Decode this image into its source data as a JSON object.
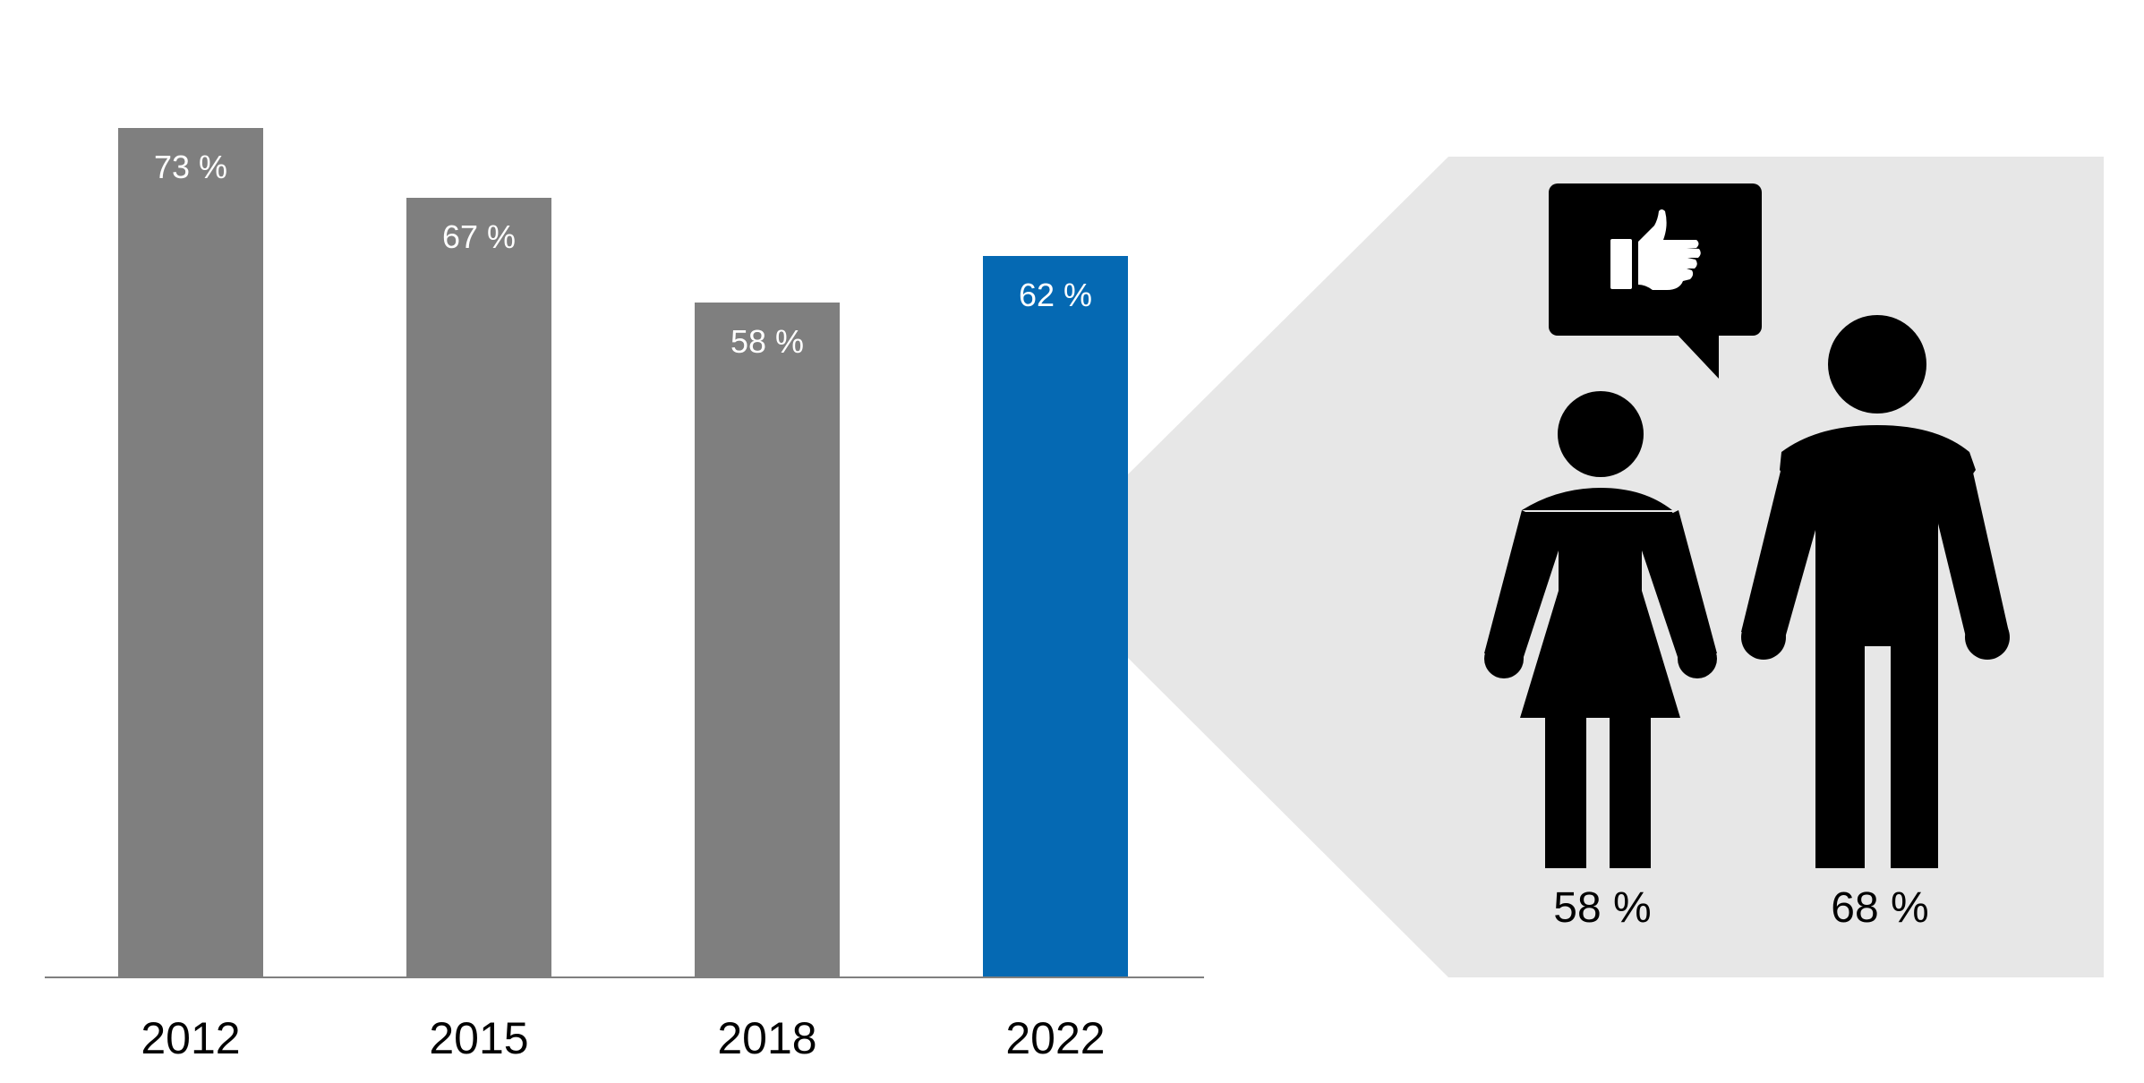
{
  "chart_data": [
    {
      "type": "bar",
      "categories": [
        "2012",
        "2015",
        "2018",
        "2022"
      ],
      "values": [
        73,
        67,
        58,
        62
      ],
      "value_labels": [
        "73 %",
        "67 %",
        "58 %",
        "62 %"
      ],
      "highlight_index": 3,
      "ylim": [
        0,
        100
      ],
      "grid": false,
      "title": "",
      "xlabel": "",
      "ylabel": ""
    },
    {
      "type": "pictogram",
      "categories": [
        "woman",
        "man"
      ],
      "values": [
        58,
        68
      ],
      "value_labels": [
        "58 %",
        "68 %"
      ]
    }
  ],
  "colors": {
    "bar_default": "#7f7f7f",
    "bar_highlight": "#0569b3",
    "callout_panel": "#e7e7e7",
    "axis_line": "#7f7f7f",
    "icon_fill": "#000000"
  },
  "icons": {
    "speech_bubble": "speech-bubble-icon",
    "thumbs_up": "thumbs-up-icon",
    "woman": "woman-icon",
    "man": "man-icon"
  }
}
